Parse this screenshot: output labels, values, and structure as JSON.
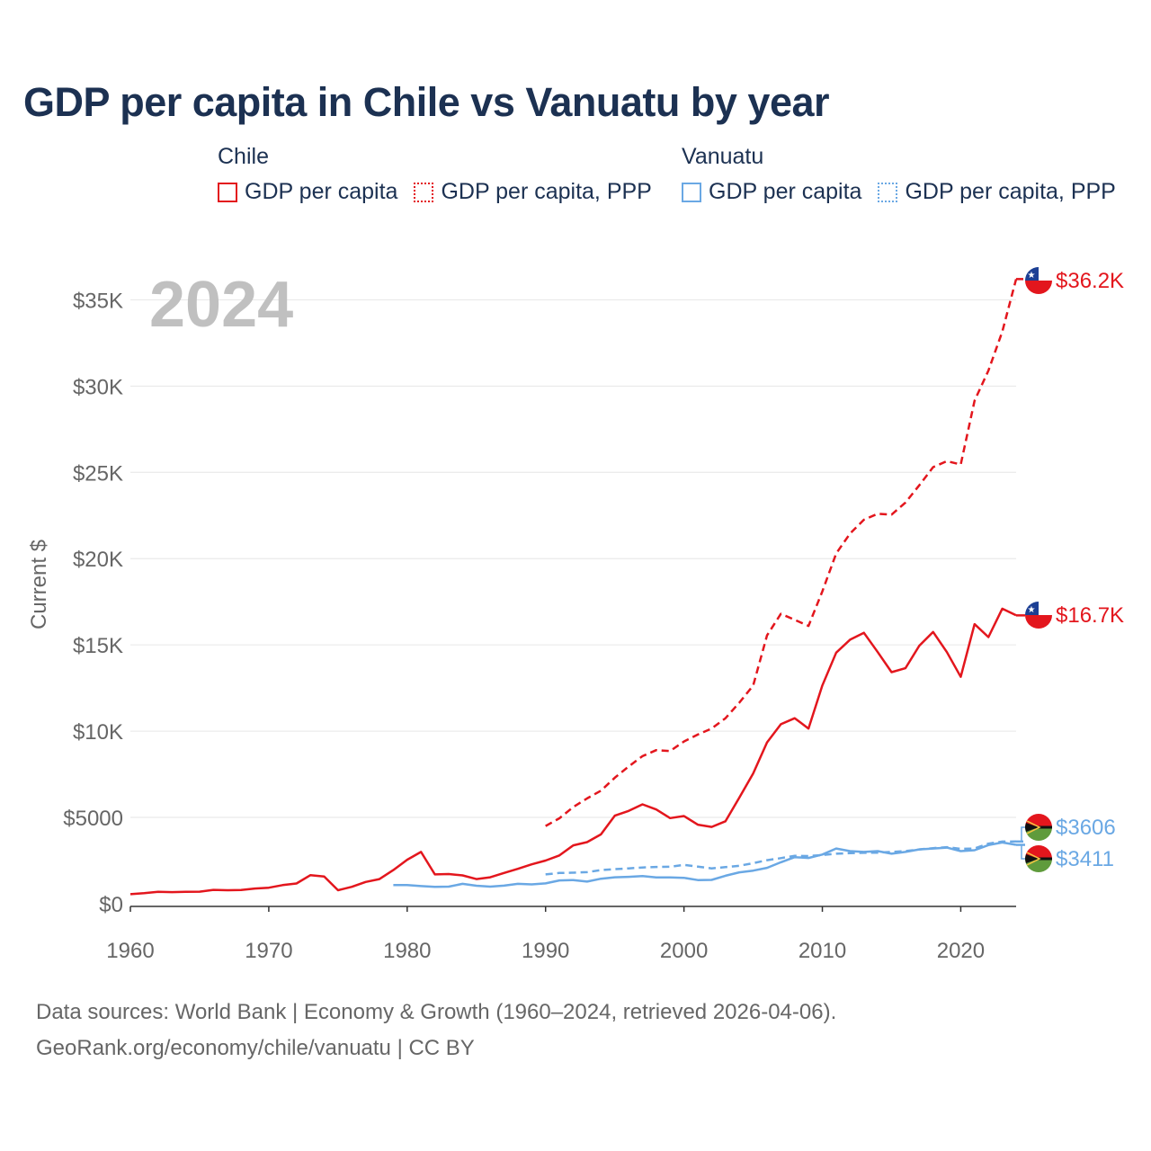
{
  "title": "GDP per capita in Chile vs Vanuatu by year",
  "legend": {
    "groups": [
      {
        "name": "Chile",
        "items": [
          "GDP per capita",
          "GDP per capita, PPP"
        ],
        "color": "#e3161d"
      },
      {
        "name": "Vanuatu",
        "items": [
          "GDP per capita",
          "GDP per capita, PPP"
        ],
        "color": "#6aa8e4"
      }
    ]
  },
  "year_label": "2024",
  "footer": {
    "line1": "Data sources: World Bank | Economy & Growth (1960–2024, retrieved 2026-04-06).",
    "line2": "GeoRank.org/economy/chile/vanuatu | CC BY"
  },
  "chart_data": {
    "type": "line",
    "title": "GDP per capita in Chile vs Vanuatu by year",
    "xlabel": "",
    "ylabel": "Current $",
    "xlim": [
      1960,
      2024
    ],
    "ylim": [
      0,
      37000
    ],
    "x_ticks": [
      1960,
      1970,
      1980,
      1990,
      2000,
      2010,
      2020
    ],
    "y_ticks": [
      0,
      5000,
      10000,
      15000,
      20000,
      25000,
      30000,
      35000
    ],
    "y_tick_labels": [
      "$0",
      "$5000",
      "$10K",
      "$15K",
      "$20K",
      "$25K",
      "$30K",
      "$35K"
    ],
    "grid": true,
    "series": [
      {
        "name": "Chile GDP per capita",
        "country": "Chile",
        "color": "#e3161d",
        "dash": false,
        "end_label": "$16.7K",
        "points": [
          [
            1960,
            550
          ],
          [
            1961,
            610
          ],
          [
            1962,
            690
          ],
          [
            1963,
            670
          ],
          [
            1964,
            690
          ],
          [
            1965,
            700
          ],
          [
            1966,
            800
          ],
          [
            1967,
            780
          ],
          [
            1968,
            790
          ],
          [
            1969,
            880
          ],
          [
            1970,
            930
          ],
          [
            1971,
            1080
          ],
          [
            1972,
            1170
          ],
          [
            1973,
            1650
          ],
          [
            1974,
            1580
          ],
          [
            1975,
            780
          ],
          [
            1976,
            980
          ],
          [
            1977,
            1260
          ],
          [
            1978,
            1430
          ],
          [
            1979,
            1950
          ],
          [
            1980,
            2550
          ],
          [
            1981,
            3000
          ],
          [
            1982,
            1700
          ],
          [
            1983,
            1720
          ],
          [
            1984,
            1640
          ],
          [
            1985,
            1430
          ],
          [
            1986,
            1530
          ],
          [
            1987,
            1780
          ],
          [
            1988,
            2020
          ],
          [
            1989,
            2280
          ],
          [
            1990,
            2500
          ],
          [
            1991,
            2800
          ],
          [
            1992,
            3380
          ],
          [
            1993,
            3570
          ],
          [
            1994,
            4020
          ],
          [
            1995,
            5100
          ],
          [
            1996,
            5380
          ],
          [
            1997,
            5760
          ],
          [
            1998,
            5460
          ],
          [
            1999,
            4960
          ],
          [
            2000,
            5080
          ],
          [
            2001,
            4580
          ],
          [
            2002,
            4450
          ],
          [
            2003,
            4780
          ],
          [
            2004,
            6150
          ],
          [
            2005,
            7550
          ],
          [
            2006,
            9350
          ],
          [
            2007,
            10400
          ],
          [
            2008,
            10750
          ],
          [
            2009,
            10150
          ],
          [
            2010,
            12650
          ],
          [
            2011,
            14550
          ],
          [
            2012,
            15300
          ],
          [
            2013,
            15700
          ],
          [
            2014,
            14580
          ],
          [
            2015,
            13420
          ],
          [
            2016,
            13650
          ],
          [
            2017,
            14950
          ],
          [
            2018,
            15750
          ],
          [
            2019,
            14580
          ],
          [
            2020,
            13150
          ],
          [
            2021,
            16200
          ],
          [
            2022,
            15450
          ],
          [
            2023,
            17100
          ],
          [
            2024,
            16710
          ]
        ]
      },
      {
        "name": "Chile GDP per capita, PPP",
        "country": "Chile",
        "color": "#e3161d",
        "dash": true,
        "end_label": "$36.2K",
        "points": [
          [
            1990,
            4500
          ],
          [
            1991,
            4950
          ],
          [
            1992,
            5600
          ],
          [
            1993,
            6100
          ],
          [
            1994,
            6550
          ],
          [
            1995,
            7300
          ],
          [
            1996,
            7950
          ],
          [
            1997,
            8550
          ],
          [
            1998,
            8900
          ],
          [
            1999,
            8850
          ],
          [
            2000,
            9400
          ],
          [
            2001,
            9800
          ],
          [
            2002,
            10150
          ],
          [
            2003,
            10750
          ],
          [
            2004,
            11650
          ],
          [
            2005,
            12650
          ],
          [
            2006,
            15550
          ],
          [
            2007,
            16800
          ],
          [
            2008,
            16450
          ],
          [
            2009,
            16100
          ],
          [
            2010,
            18100
          ],
          [
            2011,
            20300
          ],
          [
            2012,
            21450
          ],
          [
            2013,
            22250
          ],
          [
            2014,
            22600
          ],
          [
            2015,
            22550
          ],
          [
            2016,
            23250
          ],
          [
            2017,
            24250
          ],
          [
            2018,
            25300
          ],
          [
            2019,
            25650
          ],
          [
            2020,
            25450
          ],
          [
            2021,
            29150
          ],
          [
            2022,
            30900
          ],
          [
            2023,
            33150
          ],
          [
            2024,
            36200
          ]
        ]
      },
      {
        "name": "Vanuatu GDP per capita",
        "country": "Vanuatu",
        "color": "#6aa8e4",
        "dash": false,
        "end_label": "$3411",
        "points": [
          [
            1979,
            1080
          ],
          [
            1980,
            1080
          ],
          [
            1981,
            1020
          ],
          [
            1982,
            980
          ],
          [
            1983,
            990
          ],
          [
            1984,
            1150
          ],
          [
            1985,
            1040
          ],
          [
            1986,
            990
          ],
          [
            1987,
            1050
          ],
          [
            1988,
            1150
          ],
          [
            1989,
            1120
          ],
          [
            1990,
            1180
          ],
          [
            1991,
            1350
          ],
          [
            1992,
            1370
          ],
          [
            1993,
            1280
          ],
          [
            1994,
            1450
          ],
          [
            1995,
            1530
          ],
          [
            1996,
            1560
          ],
          [
            1997,
            1600
          ],
          [
            1998,
            1520
          ],
          [
            1999,
            1520
          ],
          [
            2000,
            1500
          ],
          [
            2001,
            1370
          ],
          [
            2002,
            1380
          ],
          [
            2003,
            1620
          ],
          [
            2004,
            1820
          ],
          [
            2005,
            1920
          ],
          [
            2006,
            2080
          ],
          [
            2007,
            2400
          ],
          [
            2008,
            2700
          ],
          [
            2009,
            2650
          ],
          [
            2010,
            2850
          ],
          [
            2011,
            3200
          ],
          [
            2012,
            3050
          ],
          [
            2013,
            3000
          ],
          [
            2014,
            3050
          ],
          [
            2015,
            2900
          ],
          [
            2016,
            3000
          ],
          [
            2017,
            3150
          ],
          [
            2018,
            3200
          ],
          [
            2019,
            3250
          ],
          [
            2020,
            3050
          ],
          [
            2021,
            3100
          ],
          [
            2022,
            3400
          ],
          [
            2023,
            3550
          ],
          [
            2024,
            3411
          ]
        ]
      },
      {
        "name": "Vanuatu GDP per capita, PPP",
        "country": "Vanuatu",
        "color": "#6aa8e4",
        "dash": true,
        "end_label": "$3606",
        "points": [
          [
            1990,
            1700
          ],
          [
            1991,
            1780
          ],
          [
            1992,
            1800
          ],
          [
            1993,
            1830
          ],
          [
            1994,
            1950
          ],
          [
            1995,
            2000
          ],
          [
            1996,
            2050
          ],
          [
            1997,
            2100
          ],
          [
            1998,
            2130
          ],
          [
            1999,
            2140
          ],
          [
            2000,
            2250
          ],
          [
            2001,
            2150
          ],
          [
            2002,
            2050
          ],
          [
            2003,
            2120
          ],
          [
            2004,
            2200
          ],
          [
            2005,
            2350
          ],
          [
            2006,
            2520
          ],
          [
            2007,
            2640
          ],
          [
            2008,
            2780
          ],
          [
            2009,
            2760
          ],
          [
            2010,
            2820
          ],
          [
            2011,
            2900
          ],
          [
            2012,
            2930
          ],
          [
            2013,
            2950
          ],
          [
            2014,
            2960
          ],
          [
            2015,
            3000
          ],
          [
            2016,
            3050
          ],
          [
            2017,
            3150
          ],
          [
            2018,
            3220
          ],
          [
            2019,
            3280
          ],
          [
            2020,
            3180
          ],
          [
            2021,
            3200
          ],
          [
            2022,
            3480
          ],
          [
            2023,
            3600
          ],
          [
            2024,
            3606
          ]
        ]
      }
    ]
  }
}
